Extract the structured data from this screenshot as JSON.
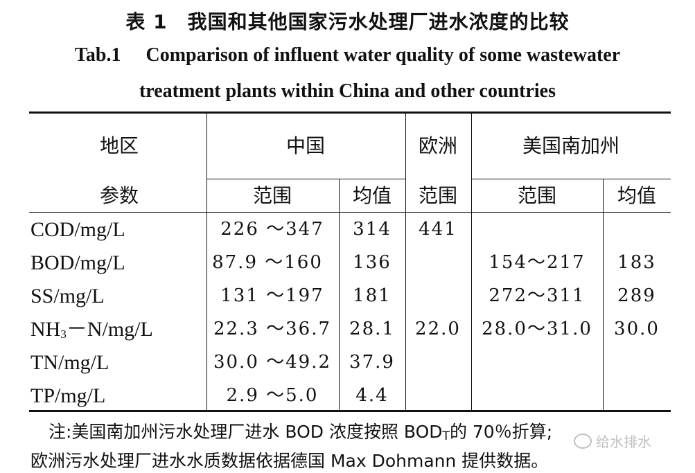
{
  "caption": {
    "cn": "表 1　我国和其他国家污水处理厂进水浓度的比较",
    "en_label": "Tab.1",
    "en_line1": "Comparison of influent water quality of some wastewater",
    "en_line2": "treatment plants within China and other countries"
  },
  "table": {
    "header_region": {
      "region": "地区",
      "china": "中国",
      "europe": "欧洲",
      "us": "美国南加州"
    },
    "header_param": {
      "param": "参数",
      "china_range": "范围",
      "china_mean": "均值",
      "europe_range": "范围",
      "us_range": "范围",
      "us_mean": "均值"
    },
    "rows": [
      {
        "param": "COD/mg/L",
        "china_range": "226 ～347",
        "china_mean": "314",
        "europe_range": "441",
        "us_range": "",
        "us_mean": ""
      },
      {
        "param": "BOD/mg/L",
        "china_range": "87.9 ～160",
        "china_mean": "136",
        "europe_range": "",
        "us_range": "154～217",
        "us_mean": "183"
      },
      {
        "param": "SS/mg/L",
        "china_range": "131 ～197",
        "china_mean": "181",
        "europe_range": "",
        "us_range": "272～311",
        "us_mean": "289"
      },
      {
        "param_prefix": "NH",
        "param_sub": "3",
        "param_suffix": "－N/mg/L",
        "china_range": "22.3 ～36.7",
        "china_mean": "28.1",
        "europe_range": "22.0",
        "us_range": "28.0～31.0",
        "us_mean": "30.0"
      },
      {
        "param": "TN/mg/L",
        "china_range": "30.0 ～49.2",
        "china_mean": "37.9",
        "europe_range": "",
        "us_range": "",
        "us_mean": ""
      },
      {
        "param": "TP/mg/L",
        "china_range": "2.9 ～5.0",
        "china_mean": "4.4",
        "europe_range": "",
        "us_range": "",
        "us_mean": ""
      }
    ]
  },
  "note": {
    "line1_a": "注:美国南加州污水处理厂进水 BOD 浓度按照 BOD",
    "line1_sub": "T",
    "line1_b": "的 70％折算;",
    "line2": "欧洲污水处理厂进水水质数据依据德国 Max Dohmann 提供数据。"
  },
  "watermark": {
    "text": "给水排水",
    "icon": "wechat-icon"
  }
}
